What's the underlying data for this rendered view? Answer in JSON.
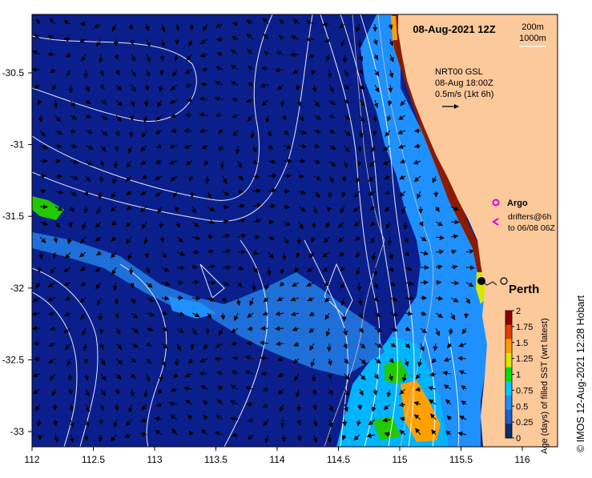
{
  "title": "08-Aug-2021 12Z",
  "depth_legend": {
    "line1": "200m",
    "line2": "1000m"
  },
  "current_info": {
    "line1": "NRT00 GSL",
    "line2": "08-Aug 18:00Z",
    "line3": "0.5m/s (1kt 6h)"
  },
  "argo_label": "Argo",
  "drifters_label": {
    "line1": "drifters@6h",
    "line2": "to 06/08 06Z"
  },
  "city_label": "Perth",
  "colorbar": {
    "title": "Age (days) of filled SST (wrt latest)",
    "ticks": [
      "0",
      "0.25",
      "0.5",
      "0.75",
      "1",
      "1.25",
      "1.5",
      "1.75",
      "2"
    ],
    "colors": [
      "#08306b",
      "#1f5fd0",
      "#1e90ff",
      "#00c8ff",
      "#00e000",
      "#d8e800",
      "#ffa000",
      "#e04000",
      "#8b0000"
    ]
  },
  "axes": {
    "x_ticks": [
      "112",
      "112.5",
      "113",
      "113.5",
      "114",
      "114.5",
      "115",
      "115.5",
      "116"
    ],
    "y_ticks": [
      "-30.5",
      "-31",
      "-31.5",
      "-32",
      "-32.5",
      "-33"
    ]
  },
  "credit": "© IMOS 12-Aug-2021 12:28 Hobart",
  "colors": {
    "ocean": "#0b1f8c",
    "land": "#fcc99b",
    "coast_red": "#8b1a00"
  }
}
